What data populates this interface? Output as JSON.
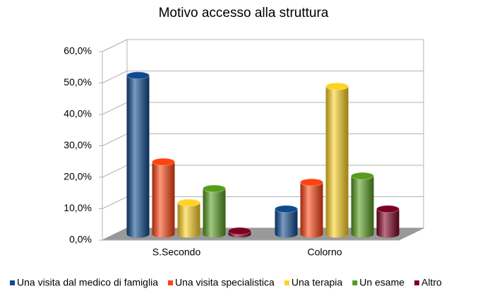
{
  "chart_data": {
    "type": "bar3d",
    "title": "Motivo accesso alla struttura",
    "categories": [
      "S.Secondo",
      "Colorno"
    ],
    "series": [
      {
        "name": "Una visita dal medico di famiglia",
        "color": "#0d4a8f",
        "values": [
          50.5,
          8
        ]
      },
      {
        "name": "Una visita specialistica",
        "color": "#ff420e",
        "values": [
          23,
          16.5
        ]
      },
      {
        "name": "Una terapia",
        "color": "#ffd320",
        "values": [
          10,
          47
        ]
      },
      {
        "name": "Un esame",
        "color": "#579d1c",
        "values": [
          14.5,
          18.5
        ]
      },
      {
        "name": "Altro",
        "color": "#7e0021",
        "values": [
          1,
          8
        ]
      }
    ],
    "ylim": [
      0,
      60
    ],
    "yticks": [
      {
        "value": 0,
        "label": "0,0%"
      },
      {
        "value": 10,
        "label": "10,0%"
      },
      {
        "value": 20,
        "label": "20,0%"
      },
      {
        "value": 30,
        "label": "30,0%"
      },
      {
        "value": 40,
        "label": "40,0%"
      },
      {
        "value": 50,
        "label": "50,0%"
      },
      {
        "value": 60,
        "label": "60,0%"
      }
    ],
    "grid": true,
    "legend": "bottom"
  }
}
